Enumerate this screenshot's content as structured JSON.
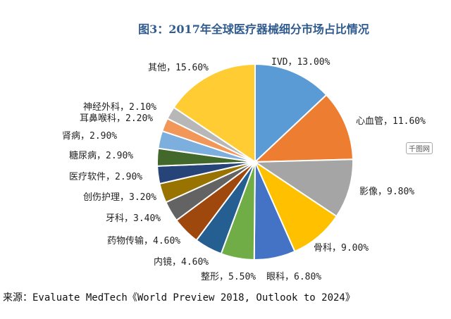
{
  "chart_data": {
    "type": "pie",
    "title": "图3：2017年全球医疗器械细分市场占比情况",
    "start": "12 o'clock, clockwise",
    "slices": [
      {
        "label": "IVD",
        "value": 13.0,
        "color": "#5B9BD5"
      },
      {
        "label": "心血管",
        "value": 11.6,
        "color": "#ED7D31"
      },
      {
        "label": "影像",
        "value": 9.8,
        "color": "#A5A5A5"
      },
      {
        "label": "骨科",
        "value": 9.0,
        "color": "#FFC000"
      },
      {
        "label": "眼科",
        "value": 6.8,
        "color": "#4472C4"
      },
      {
        "label": "整形",
        "value": 5.5,
        "color": "#70AD47"
      },
      {
        "label": "内镜",
        "value": 4.6,
        "color": "#255E91"
      },
      {
        "label": "药物传输",
        "value": 4.6,
        "color": "#9E480E"
      },
      {
        "label": "牙科",
        "value": 3.4,
        "color": "#636363"
      },
      {
        "label": "创伤护理",
        "value": 3.2,
        "color": "#997300"
      },
      {
        "label": "医疗软件",
        "value": 2.9,
        "color": "#264478"
      },
      {
        "label": "糖尿病",
        "value": 2.9,
        "color": "#43682B"
      },
      {
        "label": "肾病",
        "value": 2.9,
        "color": "#7CAFDD"
      },
      {
        "label": "耳鼻喉科",
        "value": 2.2,
        "color": "#F1975A"
      },
      {
        "label": "神经外科",
        "value": 2.1,
        "color": "#B7B7B7"
      },
      {
        "label": "其他",
        "value": 15.6,
        "color": "#FFCD33"
      }
    ]
  },
  "source": "来源：Evaluate MedTech《World Preview 2018, Outlook to 2024》",
  "watermark": "千图网"
}
